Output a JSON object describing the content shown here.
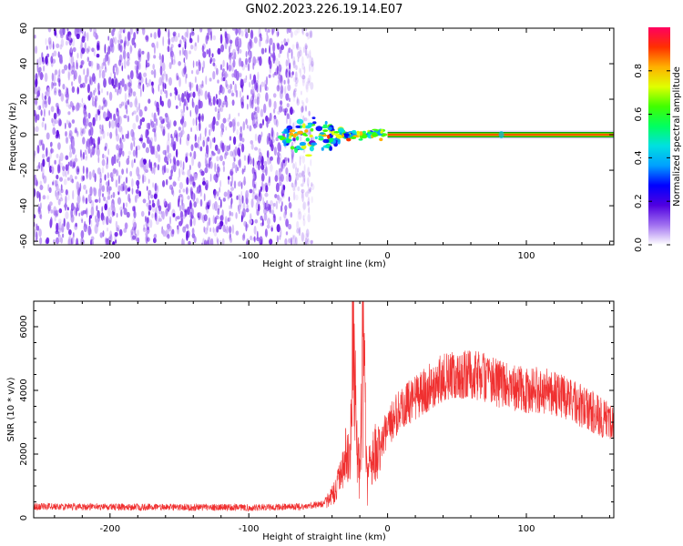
{
  "title": "GN02.2023.226.19.14.E07",
  "chart_data": [
    {
      "type": "heatmap",
      "xlabel": "Height of straight line (km)",
      "ylabel": "Frequency (Hz)",
      "xlim": [
        -255,
        163
      ],
      "ylim": [
        -62,
        60
      ],
      "xticks": [
        -200,
        -100,
        0,
        100
      ],
      "xtick_labels": [
        "-200",
        "-100",
        "0",
        "100"
      ],
      "yticks": [
        -60,
        -40,
        -20,
        0,
        20,
        40,
        60
      ],
      "ytick_labels": [
        "-60",
        "-40",
        "-20",
        "0",
        "20",
        "40",
        "60"
      ],
      "noise_region_x": [
        -255,
        -58
      ],
      "transition_region_x": [
        -78,
        -2
      ],
      "signal_line": {
        "x": [
          0,
          163
        ],
        "frequency": 0,
        "amplitude": 0.95
      },
      "secondary_blip_x": 82,
      "colorbar": {
        "label": "Normalized spectral amplitude",
        "range": [
          0,
          1
        ],
        "ticks": [
          0.0,
          0.2,
          0.4,
          0.6,
          0.8
        ],
        "tick_labels": [
          "0.0",
          "0.2",
          "0.4",
          "0.6",
          "0.8"
        ],
        "colormap": [
          "#ffffff",
          "#a070f0",
          "#5000e0",
          "#0000ff",
          "#00a0ff",
          "#00e0e0",
          "#00ff60",
          "#40ff00",
          "#e0ff00",
          "#ffb000",
          "#ff3000",
          "#ff0060"
        ]
      }
    },
    {
      "type": "line",
      "xlabel": "Height of straight line (km)",
      "ylabel": "SNR (10 * v/v)",
      "xlim": [
        -255,
        163
      ],
      "ylim": [
        0,
        6800
      ],
      "xticks": [
        -200,
        -100,
        0,
        100
      ],
      "xtick_labels": [
        "-200",
        "-100",
        "0",
        "100"
      ],
      "yticks": [
        0,
        2000,
        4000,
        6000
      ],
      "ytick_labels": [
        "0",
        "2000",
        "4000",
        "6000"
      ],
      "line_color": "#f03030",
      "series": [
        {
          "x": [
            -255,
            -200,
            -150,
            -100,
            -60,
            -45,
            -38,
            -33,
            -30,
            -27,
            -25,
            -22,
            -20,
            -18,
            -15,
            -10,
            -5,
            0,
            10,
            20,
            30,
            40,
            50,
            60,
            70,
            80,
            90,
            100,
            110,
            120,
            130,
            140,
            150,
            163
          ],
          "values": [
            350,
            340,
            330,
            320,
            350,
            450,
            800,
            1400,
            2000,
            1800,
            5800,
            2300,
            1500,
            6700,
            1400,
            2000,
            2200,
            2900,
            3400,
            3800,
            4100,
            4400,
            4500,
            4500,
            4400,
            4200,
            4100,
            4000,
            4000,
            3900,
            3700,
            3500,
            3300,
            3000
          ]
        }
      ]
    }
  ]
}
